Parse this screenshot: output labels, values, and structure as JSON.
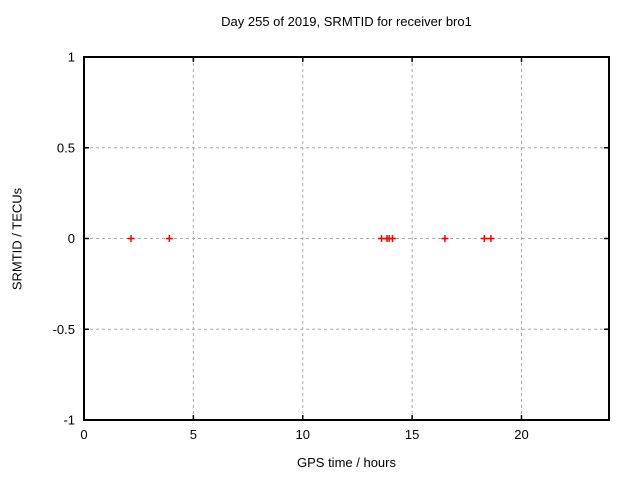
{
  "colors": {
    "background": "#ffffff",
    "border": "#000000",
    "grid": "#a8a8a8",
    "text": "#000000",
    "marker": "#ff0000"
  },
  "chart_data": {
    "type": "scatter",
    "title": "Day 255 of 2019, SRMTID for receiver bro1",
    "xlabel": "GPS time / hours",
    "ylabel": "SRMTID / TECUs",
    "xlim": [
      0,
      24
    ],
    "ylim": [
      -1,
      1
    ],
    "x_ticks": [
      0,
      5,
      10,
      15,
      20
    ],
    "y_ticks": [
      -1,
      -0.5,
      0,
      0.5,
      1
    ],
    "grid": true,
    "legend": "none",
    "series": [
      {
        "name": "SRMTID",
        "marker": "plus",
        "color": "#ff0000",
        "x": [
          2.15,
          3.9,
          13.6,
          13.85,
          13.95,
          14.1,
          16.5,
          18.3,
          18.6
        ],
        "y": [
          0,
          0,
          0,
          0,
          0,
          0,
          0,
          0,
          0
        ]
      }
    ]
  }
}
